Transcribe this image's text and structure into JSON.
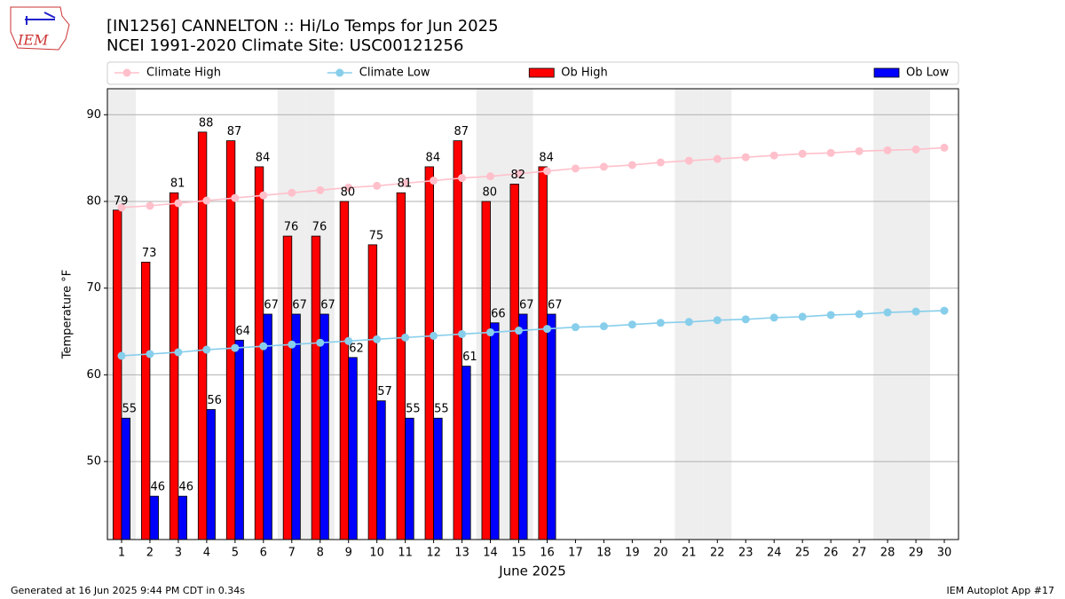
{
  "logo_text": "IEM",
  "chart_data": {
    "type": "bar",
    "title": "[IN1256] CANNELTON :: Hi/Lo Temps for Jun 2025",
    "subtitle": "NCEI 1991-2020 Climate Site: USC00121256",
    "xlabel": "June 2025",
    "ylabel": "Temperature °F",
    "x": [
      1,
      2,
      3,
      4,
      5,
      6,
      7,
      8,
      9,
      10,
      11,
      12,
      13,
      14,
      15,
      16,
      17,
      18,
      19,
      20,
      21,
      22,
      23,
      24,
      25,
      26,
      27,
      28,
      29,
      30
    ],
    "xlim": [
      0.5,
      30.5
    ],
    "xticks": [
      1,
      2,
      3,
      4,
      5,
      6,
      7,
      8,
      9,
      10,
      11,
      12,
      13,
      14,
      15,
      16,
      17,
      18,
      19,
      20,
      21,
      22,
      23,
      24,
      25,
      26,
      27,
      28,
      29,
      30
    ],
    "ylim": [
      41,
      93
    ],
    "yticks": [
      50,
      60,
      70,
      80,
      90
    ],
    "grid": true,
    "legend": "top",
    "shaded_days": [
      1,
      7,
      8,
      14,
      15,
      21,
      22,
      28,
      29
    ],
    "series": [
      {
        "name": "Climate High",
        "type": "line",
        "color": "#ffc0cb",
        "values": [
          79.3,
          79.5,
          79.8,
          80.1,
          80.4,
          80.7,
          81.0,
          81.3,
          81.6,
          81.8,
          82.1,
          82.4,
          82.7,
          82.9,
          83.2,
          83.5,
          83.8,
          84.0,
          84.2,
          84.5,
          84.7,
          84.9,
          85.1,
          85.3,
          85.5,
          85.6,
          85.8,
          85.9,
          86.0,
          86.2
        ]
      },
      {
        "name": "Climate Low",
        "type": "line",
        "color": "#87ceeb",
        "values": [
          62.2,
          62.4,
          62.6,
          62.9,
          63.1,
          63.3,
          63.5,
          63.7,
          63.9,
          64.1,
          64.3,
          64.5,
          64.7,
          64.9,
          65.1,
          65.3,
          65.5,
          65.6,
          65.8,
          66.0,
          66.1,
          66.3,
          66.4,
          66.6,
          66.7,
          66.9,
          67.0,
          67.2,
          67.3,
          67.4
        ]
      },
      {
        "name": "Ob High",
        "type": "bar",
        "color": "#ff0000",
        "values": [
          79,
          73,
          81,
          88,
          87,
          84,
          76,
          76,
          80,
          75,
          81,
          84,
          87,
          80,
          82,
          84,
          null,
          null,
          null,
          null,
          null,
          null,
          null,
          null,
          null,
          null,
          null,
          null,
          null,
          null
        ]
      },
      {
        "name": "Ob Low",
        "type": "bar",
        "color": "#0000ff",
        "values": [
          55,
          46,
          46,
          56,
          64,
          67,
          67,
          67,
          62,
          57,
          55,
          55,
          61,
          66,
          67,
          67,
          null,
          null,
          null,
          null,
          null,
          null,
          null,
          null,
          null,
          null,
          null,
          null,
          null,
          null
        ]
      }
    ]
  },
  "footer": {
    "left": "Generated at 16 Jun 2025 9:44 PM CDT in 0.34s",
    "right": "IEM Autoplot App #17"
  }
}
